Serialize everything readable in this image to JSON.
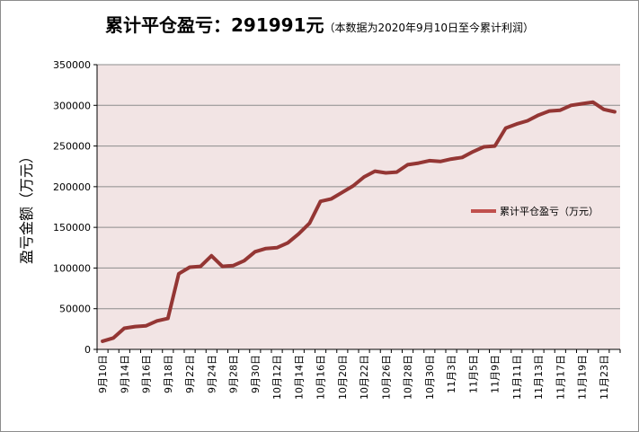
{
  "header": {
    "title_main": "累计平仓盈亏：291991元",
    "title_note": "（本数据为2020年9月10日至今累计利润）"
  },
  "colors": {
    "plot_bg": "#f2e4e4",
    "line": "#943634",
    "legend_swatch": "#c0504d",
    "grid": "#8c8c8c"
  },
  "chart_data": {
    "type": "line",
    "title": "累计平仓盈亏：291991元",
    "subtitle": "（本数据为2020年9月10日至今累计利润）",
    "ylabel": "盈亏金额（万元）",
    "xlabel": "",
    "ylim": [
      0,
      350000
    ],
    "yticks": [
      0,
      50000,
      100000,
      150000,
      200000,
      250000,
      300000,
      350000
    ],
    "ytick_labels": [
      "0",
      "50000",
      "100000",
      "150000",
      "200000",
      "250000",
      "300000",
      "350000"
    ],
    "xtick_labels": [
      "9月10日",
      "9月14日",
      "9月16日",
      "9月18日",
      "9月22日",
      "9月24日",
      "9月28日",
      "9月30日",
      "10月12日",
      "10月14日",
      "10月16日",
      "10月20日",
      "10月22日",
      "10月26日",
      "10月28日",
      "10月30日",
      "11月3日",
      "11月5日",
      "11月9日",
      "11月11日",
      "11月13日",
      "11月17日",
      "11月19日",
      "11月23日"
    ],
    "grid": "horizontal",
    "legend_position": "right",
    "series": [
      {
        "name": "累计平仓盈亏（万元）",
        "values": [
          10000,
          14000,
          26000,
          28000,
          29000,
          35000,
          38000,
          93000,
          101000,
          102000,
          115000,
          102000,
          103000,
          109000,
          120000,
          124000,
          125000,
          131000,
          142000,
          155000,
          182000,
          185000,
          193000,
          201000,
          212000,
          219000,
          217000,
          218000,
          227000,
          229000,
          232000,
          231000,
          234000,
          236000,
          243000,
          249000,
          250000,
          272000,
          277000,
          281000,
          288000,
          293000,
          294000,
          300000,
          302000,
          304000,
          295000,
          292000
        ]
      }
    ]
  }
}
